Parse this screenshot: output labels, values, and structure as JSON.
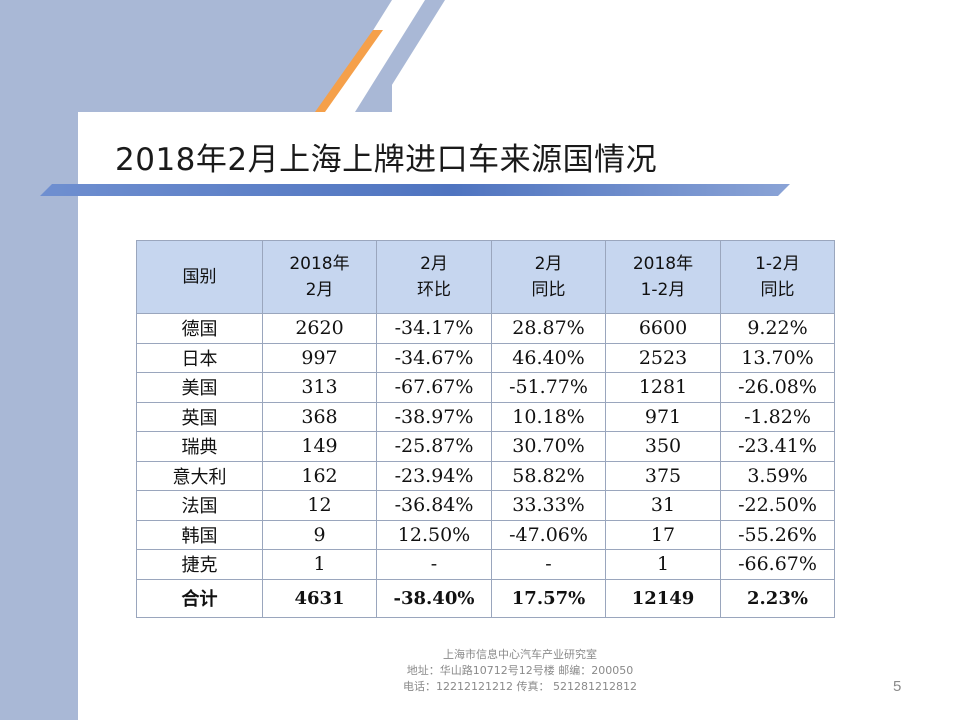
{
  "slide": {
    "title": "2018年2月上海上牌进口车来源国情况",
    "page_number": "5"
  },
  "table": {
    "headers": [
      [
        "国别"
      ],
      [
        "2018年",
        "2月"
      ],
      [
        "2月",
        "环比"
      ],
      [
        "2月",
        "同比"
      ],
      [
        "2018年",
        "1-2月"
      ],
      [
        "1-2月",
        "同比"
      ]
    ],
    "rows": [
      [
        "德国",
        "2620",
        "-34.17%",
        "28.87%",
        "6600",
        "9.22%"
      ],
      [
        "日本",
        "997",
        "-34.67%",
        "46.40%",
        "2523",
        "13.70%"
      ],
      [
        "美国",
        "313",
        "-67.67%",
        "-51.77%",
        "1281",
        "-26.08%"
      ],
      [
        "英国",
        "368",
        "-38.97%",
        "10.18%",
        "971",
        "-1.82%"
      ],
      [
        "瑞典",
        "149",
        "-25.87%",
        "30.70%",
        "350",
        "-23.41%"
      ],
      [
        "意大利",
        "162",
        "-23.94%",
        "58.82%",
        "375",
        "3.59%"
      ],
      [
        "法国",
        "12",
        "-36.84%",
        "33.33%",
        "31",
        "-22.50%"
      ],
      [
        "韩国",
        "9",
        "12.50%",
        "-47.06%",
        "17",
        "-55.26%"
      ],
      [
        "捷克",
        "1",
        "-",
        "-",
        "1",
        "-66.67%"
      ]
    ],
    "total": [
      "合计",
      "4631",
      "-38.40%",
      "17.57%",
      "12149",
      "2.23%"
    ]
  },
  "footer": {
    "line1": "上海市信息中心汽车产业研究室",
    "line2": "地址：华山路10712号12号楼     邮编：200050",
    "line3": "电话：12212121212   传真： 521281212812"
  },
  "colors": {
    "background_blue": "#a9b8d6",
    "header_fill": "#c6d6ef",
    "accent_orange": "#f5a04a",
    "bar_blue": "#4f74c0"
  }
}
